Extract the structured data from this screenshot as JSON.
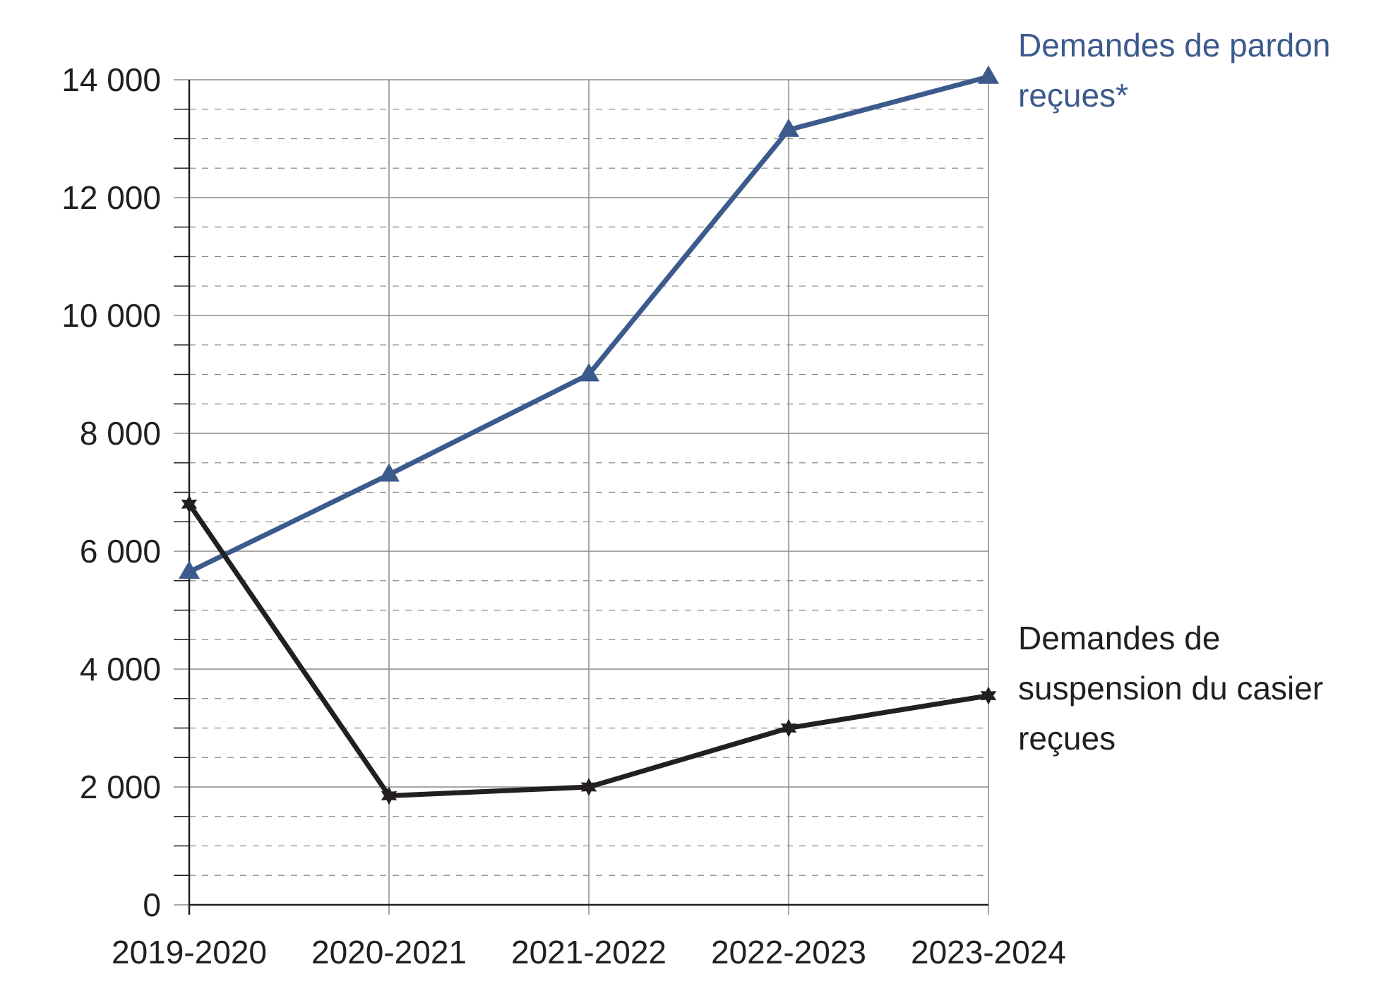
{
  "chart_data": {
    "type": "line",
    "title": "",
    "xlabel": "",
    "ylabel": "",
    "categories": [
      "2019-2020",
      "2020-2021",
      "2021-2022",
      "2022-2023",
      "2023-2024"
    ],
    "y_ticks": [
      "0",
      "2 000",
      "4 000",
      "6 000",
      "8 000",
      "10 000",
      "12 000",
      "14 000"
    ],
    "y_tick_values": [
      0,
      2000,
      4000,
      6000,
      8000,
      10000,
      12000,
      14000
    ],
    "ylim": [
      0,
      14000
    ],
    "grid": {
      "major": true,
      "minor_dashed": true,
      "minor_step": 500
    },
    "legend": "direct labels at line ends, right side",
    "series": [
      {
        "name_lines": [
          "Demandes de pardon",
          "reçues*"
        ],
        "values": [
          5650,
          7300,
          9000,
          13150,
          14050
        ],
        "color": "#3c5a8c",
        "marker": "triangle"
      },
      {
        "name_lines": [
          "Demandes de",
          "suspension du casier",
          "reçues"
        ],
        "values": [
          6800,
          1850,
          2000,
          3000,
          3550
        ],
        "color": "#231f20",
        "marker": "star"
      }
    ]
  }
}
